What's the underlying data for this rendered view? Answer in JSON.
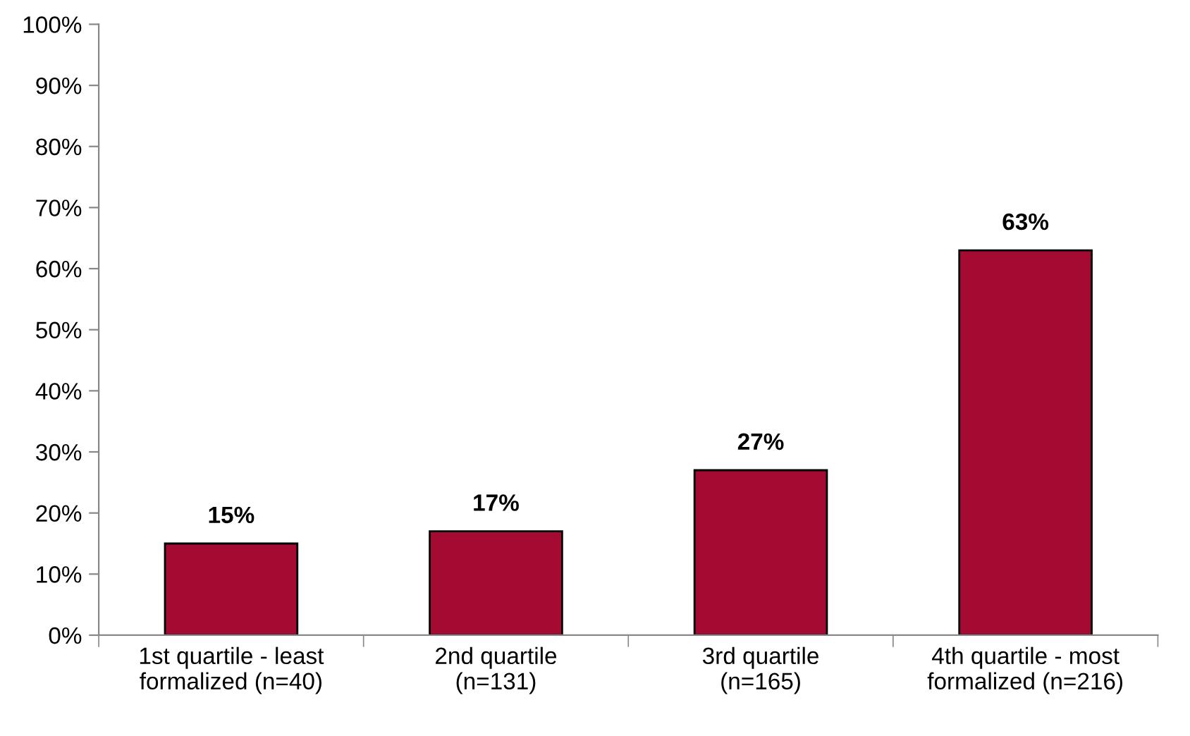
{
  "chart_data": {
    "type": "bar",
    "categories": [
      "1st quartile - least\nformalized (n=40)",
      "2nd quartile\n(n=131)",
      "3rd quartile\n(n=165)",
      "4th quartile - most\nformalized (n=216)"
    ],
    "values": [
      15,
      17,
      27,
      63
    ],
    "value_labels": [
      "15%",
      "17%",
      "27%",
      "63%"
    ],
    "color": "#a50a33",
    "ylim": [
      0,
      100
    ],
    "yticks": [
      {
        "value": 0,
        "label": "0%"
      },
      {
        "value": 10,
        "label": "10%"
      },
      {
        "value": 20,
        "label": "20%"
      },
      {
        "value": 30,
        "label": "30%"
      },
      {
        "value": 40,
        "label": "40%"
      },
      {
        "value": 50,
        "label": "50%"
      },
      {
        "value": 60,
        "label": "60%"
      },
      {
        "value": 70,
        "label": "70%"
      },
      {
        "value": 80,
        "label": "80%"
      },
      {
        "value": 90,
        "label": "90%"
      },
      {
        "value": 100,
        "label": "100%"
      }
    ],
    "grid": false,
    "legend": false
  }
}
